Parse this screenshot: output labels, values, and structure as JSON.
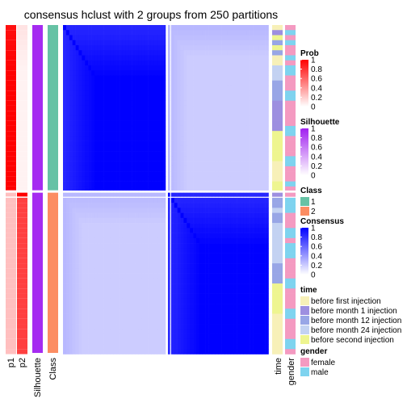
{
  "chart_data": {
    "type": "heatmap",
    "title": "consensus hclust with 2 groups from 250 partitions",
    "n_groups": 2,
    "group_sizes": [
      33,
      32
    ],
    "column_labels": [
      "p1",
      "p2",
      "Silhouette",
      "Class",
      "time",
      "gender"
    ],
    "consensus": {
      "within_group": 1.0,
      "between_group": 0.2,
      "within_group_min": 0.85
    },
    "prob": {
      "group1": {
        "p1": 1.0,
        "p2": 0.05
      },
      "group2": {
        "p1": 0.25,
        "p2": 0.75
      }
    },
    "silhouette": {
      "group1": 0.95,
      "group2": 0.95
    },
    "legends": [
      {
        "title": "Prob",
        "type": "continuous",
        "ticks": [
          "1",
          "0.8",
          "0.6",
          "0.4",
          "0.2",
          "0"
        ],
        "colors": [
          "#ff0000",
          "#ffffff"
        ]
      },
      {
        "title": "Silhouette",
        "type": "continuous",
        "ticks": [
          "1",
          "0.8",
          "0.6",
          "0.4",
          "0.2",
          "0"
        ],
        "colors": [
          "#a020f0",
          "#ffffff"
        ]
      },
      {
        "title": "Class",
        "type": "discrete",
        "items": [
          {
            "label": "1",
            "color": "#66c2a5"
          },
          {
            "label": "2",
            "color": "#fc8d62"
          }
        ]
      },
      {
        "title": "Consensus",
        "type": "continuous",
        "ticks": [
          "1",
          "0.8",
          "0.6",
          "0.4",
          "0.2",
          "0"
        ],
        "colors": [
          "#0000ff",
          "#ffffff"
        ]
      },
      {
        "title": "time",
        "type": "discrete",
        "items": [
          {
            "label": "before first injection",
            "color": "#f7f0b8"
          },
          {
            "label": "before month 1 injection",
            "color": "#9d8fe0"
          },
          {
            "label": "before month 12 injection",
            "color": "#98a6e6"
          },
          {
            "label": "before month 24 injection",
            "color": "#c3d2f2"
          },
          {
            "label": "before second injection",
            "color": "#eef590"
          }
        ]
      },
      {
        "title": "gender",
        "type": "discrete",
        "items": [
          {
            "label": "female",
            "color": "#f49ac1"
          },
          {
            "label": "male",
            "color": "#7ed3ef"
          }
        ]
      }
    ],
    "time_annotation": [
      0,
      1,
      4,
      2,
      4,
      2,
      0,
      0,
      3,
      3,
      3,
      2,
      2,
      2,
      2,
      1,
      1,
      1,
      1,
      1,
      1,
      4,
      4,
      4,
      4,
      4,
      4,
      0,
      0,
      0,
      0,
      4,
      4,
      1,
      2,
      2,
      3,
      2,
      2,
      3,
      3,
      3,
      3,
      3,
      3,
      3,
      3,
      2,
      2,
      2,
      2,
      4,
      4,
      4,
      4,
      4,
      4,
      0,
      0,
      0,
      0,
      0,
      0,
      0,
      0
    ],
    "gender_annotation": [
      0,
      1,
      0,
      1,
      0,
      0,
      1,
      0,
      1,
      1,
      0,
      0,
      0,
      1,
      1,
      0,
      0,
      0,
      0,
      0,
      1,
      1,
      0,
      0,
      0,
      0,
      1,
      1,
      0,
      0,
      0,
      1,
      0,
      0,
      1,
      1,
      1,
      0,
      0,
      0,
      1,
      1,
      0,
      1,
      1,
      1,
      0,
      0,
      0,
      0,
      1,
      1,
      0,
      0,
      0,
      0,
      1,
      1,
      0,
      0,
      0,
      0,
      1,
      1,
      0
    ]
  }
}
